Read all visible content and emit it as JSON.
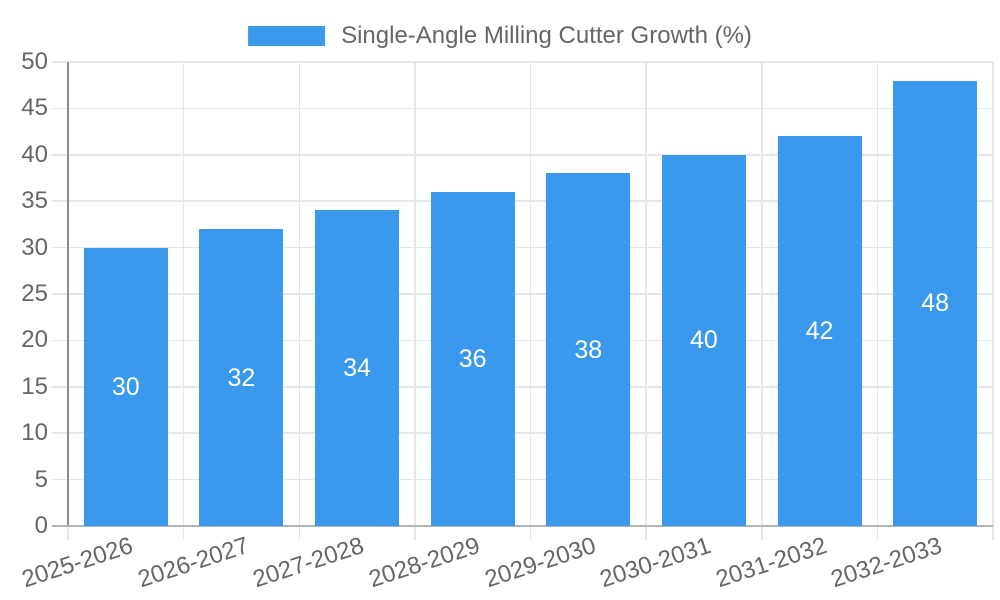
{
  "chart_data": {
    "type": "bar",
    "title": "",
    "xlabel": "",
    "ylabel": "",
    "categories": [
      "2025-2026",
      "2026-2027",
      "2027-2028",
      "2028-2029",
      "2029-2030",
      "2030-2031",
      "2031-2032",
      "2032-2033"
    ],
    "series": [
      {
        "name": "Single-Angle Milling Cutter Growth (%)",
        "values": [
          30,
          32,
          34,
          36,
          38,
          40,
          42,
          48
        ]
      }
    ],
    "ylim": [
      0,
      50
    ],
    "yticks": [
      0,
      5,
      10,
      15,
      20,
      25,
      30,
      35,
      40,
      45,
      50
    ],
    "grid": true,
    "legend_position": "top-center",
    "value_labels": "centered inside bars",
    "colors": {
      "bar": "#3a99ec",
      "value_label": "#ffffff",
      "gridline": "#e6e6e6",
      "y_axis_line": "#8c8c8c",
      "x_axis_line": "#b3b3b3",
      "tick_text": "#666666"
    }
  }
}
